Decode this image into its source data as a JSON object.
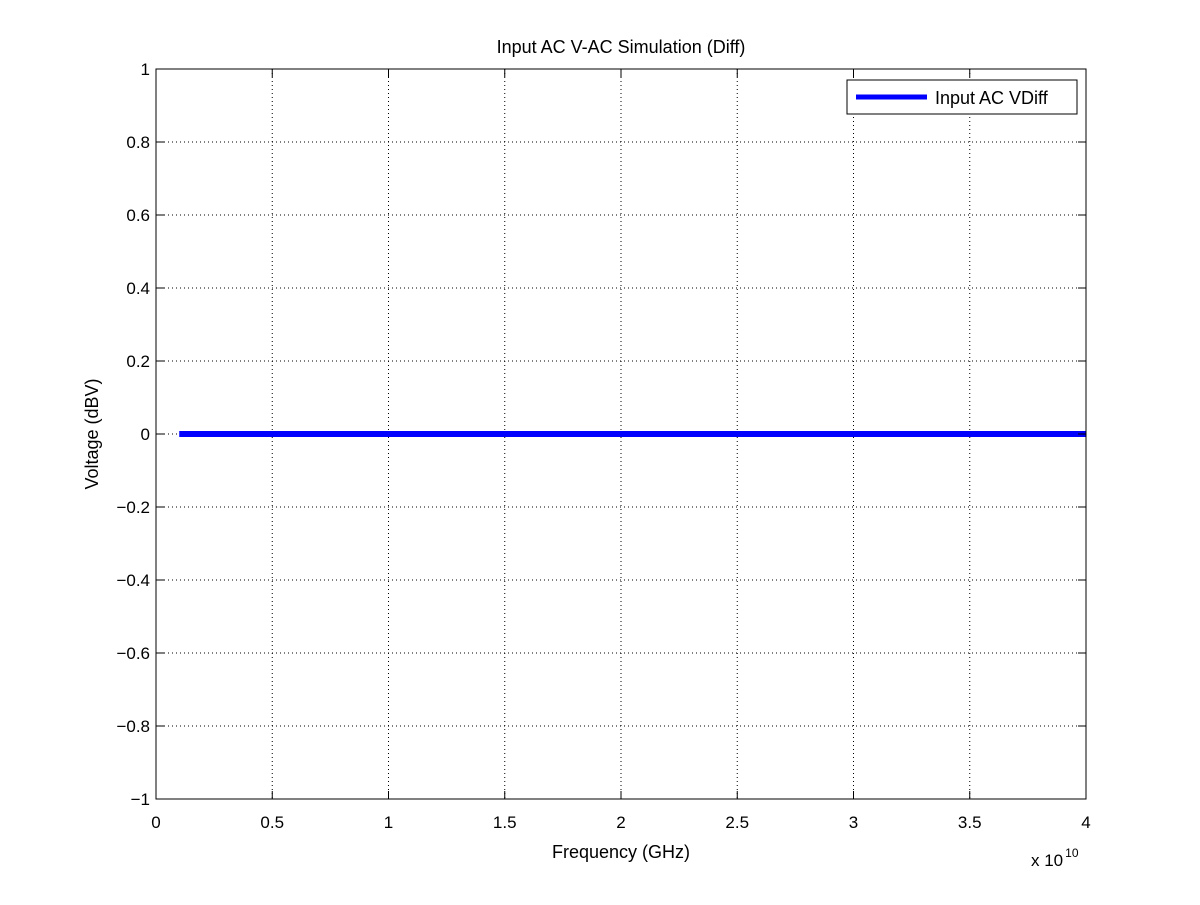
{
  "chart_data": {
    "type": "line",
    "title": "Input AC V-AC Simulation (Diff)",
    "xlabel": "Frequency (GHz)",
    "ylabel": "Voltage (dBV)",
    "xlim": [
      0,
      40000000000.0
    ],
    "ylim": [
      -1,
      1
    ],
    "x_ticks": [
      0,
      5000000000.0,
      10000000000.0,
      15000000000.0,
      20000000000.0,
      25000000000.0,
      30000000000.0,
      35000000000.0,
      40000000000.0
    ],
    "x_tick_labels": [
      "0",
      "0.5",
      "1",
      "1.5",
      "2",
      "2.5",
      "3",
      "3.5",
      "4"
    ],
    "x_multiplier": {
      "base": "x 10",
      "exponent": "10"
    },
    "y_ticks": [
      -1,
      -0.8,
      -0.6,
      -0.4,
      -0.2,
      0,
      0.2,
      0.4,
      0.6,
      0.8,
      1
    ],
    "y_tick_labels": [
      "−1",
      "−0.8",
      "−0.6",
      "−0.4",
      "−0.2",
      "0",
      "0.2",
      "0.4",
      "0.6",
      "0.8",
      "1"
    ],
    "grid": true,
    "legend_position": "top-right",
    "series": [
      {
        "name": "Input AC VDiff",
        "color": "#0000ff",
        "x": [
          1000000000.0,
          40000000000.0
        ],
        "y": [
          0,
          0
        ]
      }
    ]
  }
}
